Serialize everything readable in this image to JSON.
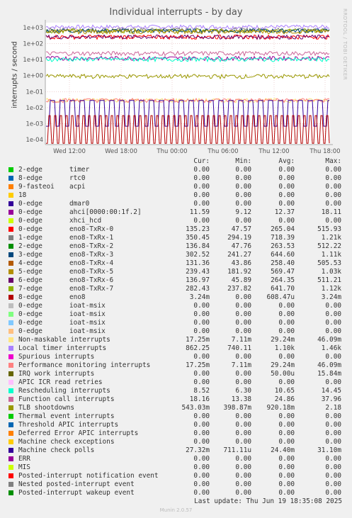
{
  "title": "Individual interrupts - by day",
  "watermark": "RRDTOOL / TOBI OETIKER",
  "ylabel": "interrupts / second",
  "legend_headers": [
    "Cur:",
    "Min:",
    "Avg:",
    "Max:"
  ],
  "legend": [
    {
      "name": "2-edge",
      "desc": "timer",
      "cur": "0.00",
      "min": "0.00",
      "avg": "0.00",
      "max": "0.00",
      "color": "#00cc00"
    },
    {
      "name": "8-edge",
      "desc": "rtc0",
      "cur": "0.00",
      "min": "0.00",
      "avg": "0.00",
      "max": "0.00",
      "color": "#0066b3"
    },
    {
      "name": "9-fasteoi",
      "desc": "acpi",
      "cur": "0.00",
      "min": "0.00",
      "avg": "0.00",
      "max": "0.00",
      "color": "#ff8000"
    },
    {
      "name": "18",
      "desc": "",
      "cur": "0.00",
      "min": "0.00",
      "avg": "0.00",
      "max": "0.00",
      "color": "#ffcc00"
    },
    {
      "name": "0-edge",
      "desc": "dmar0",
      "cur": "0.00",
      "min": "0.00",
      "avg": "0.00",
      "max": "0.00",
      "color": "#330099"
    },
    {
      "name": "0-edge",
      "desc": "ahci[0000:00:1f.2]",
      "cur": "11.59",
      "min": "9.12",
      "avg": "12.37",
      "max": "18.11",
      "color": "#990099"
    },
    {
      "name": "0-edge",
      "desc": "xhci_hcd",
      "cur": "0.00",
      "min": "0.00",
      "avg": "0.00",
      "max": "0.00",
      "color": "#ccff00"
    },
    {
      "name": "0-edge",
      "desc": "eno8-TxRx-0",
      "cur": "135.23",
      "min": "47.57",
      "avg": "265.04",
      "max": "515.93",
      "color": "#ff0000"
    },
    {
      "name": "1-edge",
      "desc": "eno8-TxRx-1",
      "cur": "350.45",
      "min": "294.19",
      "avg": "718.39",
      "max": "1.21k",
      "color": "#808080"
    },
    {
      "name": "2-edge",
      "desc": "eno8-TxRx-2",
      "cur": "136.84",
      "min": "47.76",
      "avg": "263.53",
      "max": "512.22",
      "color": "#008f00"
    },
    {
      "name": "3-edge",
      "desc": "eno8-TxRx-3",
      "cur": "302.52",
      "min": "241.27",
      "avg": "644.60",
      "max": "1.11k",
      "color": "#00487d"
    },
    {
      "name": "4-edge",
      "desc": "eno8-TxRx-4",
      "cur": "131.36",
      "min": "43.86",
      "avg": "258.40",
      "max": "505.53",
      "color": "#b35a00"
    },
    {
      "name": "5-edge",
      "desc": "eno8-TxRx-5",
      "cur": "239.43",
      "min": "181.92",
      "avg": "569.47",
      "max": "1.03k",
      "color": "#b38f00"
    },
    {
      "name": "6-edge",
      "desc": "eno8-TxRx-6",
      "cur": "136.97",
      "min": "45.89",
      "avg": "264.35",
      "max": "511.21",
      "color": "#6b006b"
    },
    {
      "name": "7-edge",
      "desc": "eno8-TxRx-7",
      "cur": "282.43",
      "min": "237.82",
      "avg": "641.70",
      "max": "1.12k",
      "color": "#8fb300"
    },
    {
      "name": "8-edge",
      "desc": "eno8",
      "cur": "3.24m",
      "min": "0.00",
      "avg": "608.47u",
      "max": "3.24m",
      "color": "#b30000"
    },
    {
      "name": "0-edge",
      "desc": "ioat-msix",
      "cur": "0.00",
      "min": "0.00",
      "avg": "0.00",
      "max": "0.00",
      "color": "#bebebe"
    },
    {
      "name": "0-edge",
      "desc": "ioat-msix",
      "cur": "0.00",
      "min": "0.00",
      "avg": "0.00",
      "max": "0.00",
      "color": "#80ff80"
    },
    {
      "name": "0-edge",
      "desc": "ioat-msix",
      "cur": "0.00",
      "min": "0.00",
      "avg": "0.00",
      "max": "0.00",
      "color": "#80c9ff"
    },
    {
      "name": "0-edge",
      "desc": "ioat-msix",
      "cur": "0.00",
      "min": "0.00",
      "avg": "0.00",
      "max": "0.00",
      "color": "#ffc080"
    },
    {
      "name": "Non-maskable interrupts",
      "desc": "",
      "cur": "17.25m",
      "min": "7.11m",
      "avg": "29.24m",
      "max": "46.09m",
      "color": "#ffe680"
    },
    {
      "name": "Local timer interrupts",
      "desc": "",
      "cur": "862.25",
      "min": "740.11",
      "avg": "1.10k",
      "max": "1.46k",
      "color": "#aa80ff"
    },
    {
      "name": "Spurious interrupts",
      "desc": "",
      "cur": "0.00",
      "min": "0.00",
      "avg": "0.00",
      "max": "0.00",
      "color": "#ee00cc"
    },
    {
      "name": "Performance monitoring interrupts",
      "desc": "",
      "cur": "17.25m",
      "min": "7.11m",
      "avg": "29.24m",
      "max": "46.09m",
      "color": "#ff8080"
    },
    {
      "name": "IRQ work interrupts",
      "desc": "",
      "cur": "0.00",
      "min": "0.00",
      "avg": "50.00u",
      "max": "15.84m",
      "color": "#666600"
    },
    {
      "name": "APIC ICR read retries",
      "desc": "",
      "cur": "0.00",
      "min": "0.00",
      "avg": "0.00",
      "max": "0.00",
      "color": "#ffbfff"
    },
    {
      "name": "Rescheduling interrupts",
      "desc": "",
      "cur": "8.52",
      "min": "6.30",
      "avg": "10.65",
      "max": "14.45",
      "color": "#00ffcc"
    },
    {
      "name": "Function call interrupts",
      "desc": "",
      "cur": "18.16",
      "min": "13.38",
      "avg": "24.86",
      "max": "37.96",
      "color": "#cc6699"
    },
    {
      "name": "TLB shootdowns",
      "desc": "",
      "cur": "543.03m",
      "min": "398.87m",
      "avg": "920.18m",
      "max": "2.18",
      "color": "#999900"
    },
    {
      "name": "Thermal event interrupts",
      "desc": "",
      "cur": "0.00",
      "min": "0.00",
      "avg": "0.00",
      "max": "0.00",
      "color": "#00cc00"
    },
    {
      "name": "Threshold APIC interrupts",
      "desc": "",
      "cur": "0.00",
      "min": "0.00",
      "avg": "0.00",
      "max": "0.00",
      "color": "#0066b3"
    },
    {
      "name": "Deferred Error APIC interrupts",
      "desc": "",
      "cur": "0.00",
      "min": "0.00",
      "avg": "0.00",
      "max": "0.00",
      "color": "#ff8000"
    },
    {
      "name": "Machine check exceptions",
      "desc": "",
      "cur": "0.00",
      "min": "0.00",
      "avg": "0.00",
      "max": "0.00",
      "color": "#ffcc00"
    },
    {
      "name": "Machine check polls",
      "desc": "",
      "cur": "27.32m",
      "min": "711.11u",
      "avg": "24.40m",
      "max": "31.10m",
      "color": "#330099"
    },
    {
      "name": "ERR",
      "desc": "",
      "cur": "0.00",
      "min": "0.00",
      "avg": "0.00",
      "max": "0.00",
      "color": "#990099"
    },
    {
      "name": "MIS",
      "desc": "",
      "cur": "0.00",
      "min": "0.00",
      "avg": "0.00",
      "max": "0.00",
      "color": "#ccff00"
    },
    {
      "name": "Posted-interrupt notification event",
      "desc": "",
      "cur": "0.00",
      "min": "0.00",
      "avg": "0.00",
      "max": "0.00",
      "color": "#ff0000"
    },
    {
      "name": "Nested posted-interrupt event",
      "desc": "",
      "cur": "0.00",
      "min": "0.00",
      "avg": "0.00",
      "max": "0.00",
      "color": "#808080"
    },
    {
      "name": "Posted-interrupt wakeup event",
      "desc": "",
      "cur": "0.00",
      "min": "0.00",
      "avg": "0.00",
      "max": "0.00",
      "color": "#008f00"
    }
  ],
  "last_update": "Last update: Thu Jun 19 18:35:08 2025",
  "footer": "Munin 2.0.57",
  "chart_data": {
    "type": "line",
    "title": "Individual interrupts - by day",
    "ylabel": "interrupts / second",
    "yscale": "log",
    "ylim": [
      5e-05,
      2000
    ],
    "yticks": [
      "1e+03",
      "1e+02",
      "1e+01",
      "1e+00",
      "1e-01",
      "1e-02",
      "1e-03",
      "1e-04"
    ],
    "ytick_values": [
      1000,
      100,
      10,
      1,
      0.1,
      0.01,
      0.001,
      0.0001
    ],
    "xticks": [
      "Wed 12:00",
      "Wed 18:00",
      "Thu 00:00",
      "Thu 06:00",
      "Thu 12:00",
      "Thu 18:00"
    ],
    "grid": true,
    "series": [
      {
        "name": "Local timer interrupts",
        "color": "#aa80ff",
        "level": 1100
      },
      {
        "name": "eno8-TxRx-1",
        "color": "#808080",
        "level": 718.39
      },
      {
        "name": "eno8-TxRx-7",
        "color": "#8fb300",
        "level": 641.7
      },
      {
        "name": "eno8-TxRx-3",
        "color": "#00487d",
        "level": 644.6
      },
      {
        "name": "eno8-TxRx-5",
        "color": "#b38f00",
        "level": 569.47
      },
      {
        "name": "eno8-TxRx-0",
        "color": "#ff0000",
        "level": 265.04
      },
      {
        "name": "eno8-TxRx-6",
        "color": "#6b006b",
        "level": 264.35
      },
      {
        "name": "Function call interrupts",
        "color": "#cc6699",
        "level": 24.86
      },
      {
        "name": "ahci[0000:00:1f.2]",
        "color": "#990099",
        "level": 12.37
      },
      {
        "name": "Rescheduling interrupts",
        "color": "#00ffcc",
        "level": 10.65
      },
      {
        "name": "TLB shootdowns",
        "color": "#999900",
        "level": 0.92
      },
      {
        "name": "Non-maskable interrupts",
        "color": "#ffe680",
        "level": 0.02924
      },
      {
        "name": "Performance monitoring interrupts",
        "color": "#ff8080",
        "level": 0.02924
      },
      {
        "name": "Machine check polls",
        "color": "#330099",
        "level": 0.0244
      },
      {
        "name": "eno8",
        "color": "#b30000",
        "level": 0.000608
      }
    ]
  }
}
